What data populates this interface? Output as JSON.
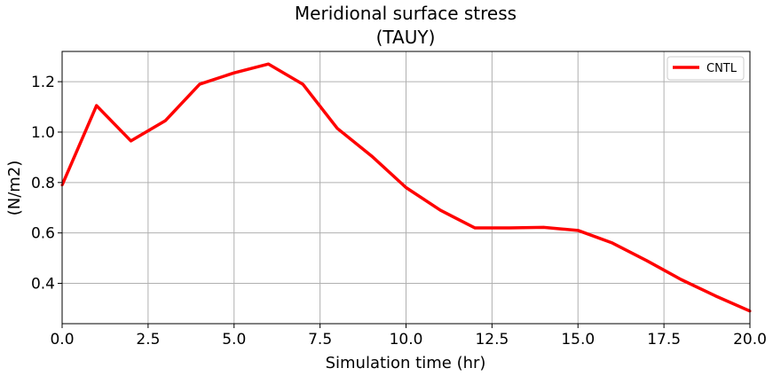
{
  "chart_data": {
    "type": "line",
    "title": "Meridional surface stress",
    "subtitle": "(TAUY)",
    "xlabel": "Simulation time (hr)",
    "ylabel": "(N/m2)",
    "xlim": [
      0,
      20
    ],
    "ylim": [
      0.24,
      1.32
    ],
    "grid": true,
    "legend_position": "top-right",
    "x_ticks": [
      0,
      2.5,
      5,
      7.5,
      10,
      12.5,
      15,
      17.5,
      20
    ],
    "x_tick_labels": [
      "0.0",
      "2.5",
      "5.0",
      "7.5",
      "10.0",
      "12.5",
      "15.0",
      "17.5",
      "20.0"
    ],
    "y_ticks": [
      0.4,
      0.6,
      0.8,
      1.0,
      1.2
    ],
    "y_tick_labels": [
      "0.4",
      "0.6",
      "0.8",
      "1.0",
      "1.2"
    ],
    "series": [
      {
        "name": "CNTL",
        "color": "#ff0000",
        "x": [
          0,
          1,
          2,
          3,
          4,
          5,
          6,
          7,
          8,
          9,
          10,
          11,
          12,
          13,
          14,
          15,
          16,
          17,
          18,
          19,
          20
        ],
        "values": [
          0.79,
          1.105,
          0.965,
          1.045,
          1.19,
          1.235,
          1.27,
          1.19,
          1.015,
          0.905,
          0.78,
          0.69,
          0.62,
          0.62,
          0.622,
          0.61,
          0.56,
          0.49,
          0.415,
          0.35,
          0.29
        ]
      }
    ]
  }
}
